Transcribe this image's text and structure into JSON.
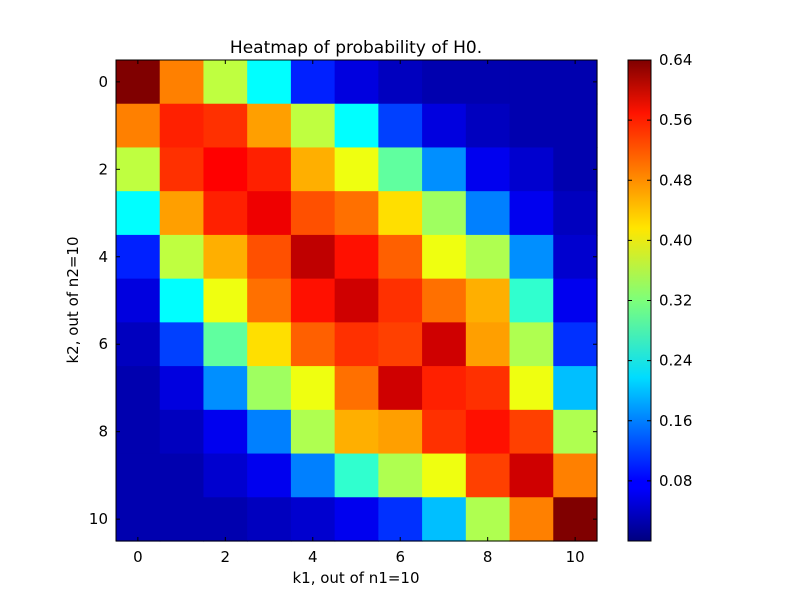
{
  "chart_data": {
    "type": "heatmap",
    "title": "Heatmap of probability of H0.",
    "xlabel": "k1, out of n1=10",
    "ylabel": "k2, out of n2=10",
    "x_ticks": [
      "0",
      "2",
      "4",
      "6",
      "8",
      "10"
    ],
    "y_ticks": [
      "0",
      "2",
      "4",
      "6",
      "8",
      "10"
    ],
    "x": [
      0,
      1,
      2,
      3,
      4,
      5,
      6,
      7,
      8,
      9,
      10
    ],
    "y": [
      0,
      1,
      2,
      3,
      4,
      5,
      6,
      7,
      8,
      9,
      10
    ],
    "xlim": [
      -0.5,
      10.5
    ],
    "ylim": [
      10.5,
      -0.5
    ],
    "colorbar": {
      "colormap": "jet",
      "range": [
        0.0,
        0.64
      ],
      "ticks": [
        "0.64",
        "0.56",
        "0.48",
        "0.40",
        "0.32",
        "0.24",
        "0.16",
        "0.08"
      ],
      "tick_values": [
        0.64,
        0.56,
        0.48,
        0.4,
        0.32,
        0.24,
        0.16,
        0.08
      ]
    },
    "values": [
      [
        0.64,
        0.48,
        0.36,
        0.24,
        0.1,
        0.06,
        0.04,
        0.03,
        0.03,
        0.03,
        0.03
      ],
      [
        0.48,
        0.54,
        0.53,
        0.46,
        0.36,
        0.24,
        0.12,
        0.06,
        0.04,
        0.03,
        0.03
      ],
      [
        0.36,
        0.53,
        0.56,
        0.54,
        0.45,
        0.39,
        0.3,
        0.17,
        0.07,
        0.05,
        0.03
      ],
      [
        0.24,
        0.46,
        0.54,
        0.57,
        0.51,
        0.49,
        0.42,
        0.34,
        0.16,
        0.07,
        0.04
      ],
      [
        0.1,
        0.36,
        0.45,
        0.51,
        0.6,
        0.55,
        0.5,
        0.39,
        0.35,
        0.17,
        0.05
      ],
      [
        0.06,
        0.24,
        0.39,
        0.49,
        0.55,
        0.59,
        0.53,
        0.49,
        0.45,
        0.27,
        0.07
      ],
      [
        0.04,
        0.12,
        0.3,
        0.42,
        0.5,
        0.53,
        0.52,
        0.59,
        0.46,
        0.35,
        0.11
      ],
      [
        0.03,
        0.06,
        0.17,
        0.34,
        0.39,
        0.49,
        0.59,
        0.54,
        0.53,
        0.39,
        0.2
      ],
      [
        0.03,
        0.04,
        0.07,
        0.16,
        0.35,
        0.45,
        0.46,
        0.53,
        0.55,
        0.52,
        0.35
      ],
      [
        0.03,
        0.03,
        0.05,
        0.07,
        0.16,
        0.27,
        0.35,
        0.39,
        0.52,
        0.59,
        0.48
      ],
      [
        0.03,
        0.03,
        0.03,
        0.04,
        0.05,
        0.07,
        0.11,
        0.2,
        0.35,
        0.48,
        0.64
      ]
    ]
  }
}
